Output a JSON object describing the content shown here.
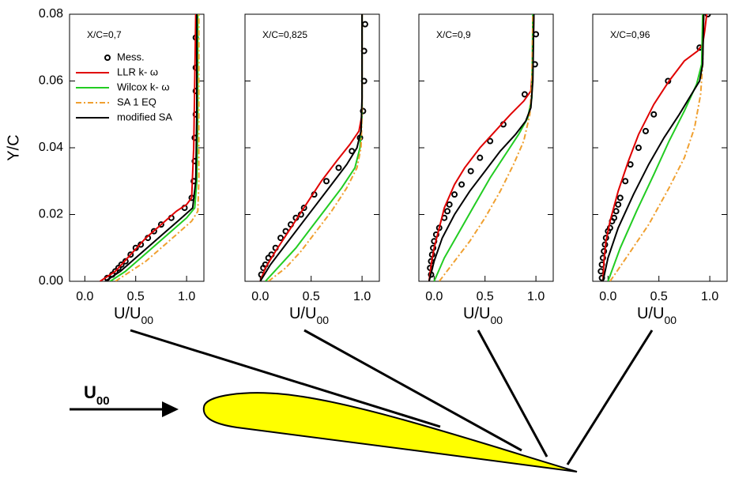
{
  "chart_data": [
    {
      "type": "line",
      "annotation": "X/C=0,7",
      "ylabel": "Y/C",
      "xlabel": {
        "main": "U/U",
        "sub": "00"
      },
      "legend": "upper left",
      "xlim": [
        -0.15,
        1.17
      ],
      "ylim": [
        0,
        0.08
      ],
      "xticks": [
        {
          "value": 0,
          "label": "0.0"
        },
        {
          "value": 0.5,
          "label": "0.5"
        },
        {
          "value": 1,
          "label": "1.0"
        }
      ],
      "yticks": [
        {
          "value": 0,
          "label": "0.00"
        },
        {
          "value": 0.02,
          "label": "0.02"
        },
        {
          "value": 0.04,
          "label": "0.04"
        },
        {
          "value": 0.06,
          "label": "0.06"
        },
        {
          "value": 0.08,
          "label": "0.08"
        }
      ],
      "series": [
        {
          "name": "Mess.",
          "color": "#000000",
          "style": "marker",
          "x": [
            0.22,
            0.27,
            0.3,
            0.33,
            0.36,
            0.4,
            0.45,
            0.5,
            0.55,
            0.62,
            0.68,
            0.75,
            0.85,
            0.98,
            1.05,
            1.07,
            1.08,
            1.08,
            1.09,
            1.09,
            1.09,
            1.09
          ],
          "y": [
            0.001,
            0.002,
            0.003,
            0.004,
            0.005,
            0.006,
            0.008,
            0.01,
            0.011,
            0.013,
            0.015,
            0.017,
            0.019,
            0.022,
            0.025,
            0.03,
            0.036,
            0.043,
            0.05,
            0.057,
            0.064,
            0.073
          ]
        },
        {
          "name": "LLR k- ω",
          "color": "#e00000",
          "style": "solid",
          "x": [
            0.15,
            0.3,
            0.45,
            0.6,
            0.75,
            0.9,
            1.0,
            1.05,
            1.07,
            1.08,
            1.09
          ],
          "y": [
            0,
            0.003,
            0.008,
            0.013,
            0.017,
            0.021,
            0.023,
            0.025,
            0.04,
            0.06,
            0.08
          ]
        },
        {
          "name": "Wilcox k- ω",
          "color": "#22cc22",
          "style": "solid",
          "x": [
            0.25,
            0.4,
            0.55,
            0.7,
            0.85,
            1.0,
            1.08,
            1.1,
            1.11,
            1.11
          ],
          "y": [
            0,
            0.003,
            0.007,
            0.011,
            0.015,
            0.019,
            0.022,
            0.03,
            0.05,
            0.08
          ]
        },
        {
          "name": "SA 1 EQ",
          "color": "#f0a030",
          "style": "dashdot",
          "x": [
            0.3,
            0.45,
            0.6,
            0.75,
            0.9,
            1.05,
            1.11,
            1.12,
            1.12,
            1.12
          ],
          "y": [
            0,
            0.003,
            0.006,
            0.01,
            0.014,
            0.018,
            0.021,
            0.03,
            0.05,
            0.08
          ]
        },
        {
          "name": "modified SA",
          "color": "#000000",
          "style": "solid",
          "x": [
            0.2,
            0.35,
            0.5,
            0.65,
            0.8,
            0.95,
            1.06,
            1.09,
            1.1,
            1.1
          ],
          "y": [
            0,
            0.003,
            0.007,
            0.011,
            0.015,
            0.019,
            0.022,
            0.03,
            0.05,
            0.08
          ]
        }
      ]
    },
    {
      "type": "line",
      "annotation": "X/C=0,825",
      "xlabel": {
        "main": "U/U",
        "sub": "00"
      },
      "xlim": [
        -0.15,
        1.17
      ],
      "ylim": [
        0,
        0.08
      ],
      "xticks": [
        {
          "value": 0,
          "label": "0.0"
        },
        {
          "value": 0.5,
          "label": "0.5"
        },
        {
          "value": 1,
          "label": "1.0"
        }
      ],
      "yticks": [
        0,
        0.02,
        0.04,
        0.06,
        0.08
      ],
      "series": [
        {
          "color": "#000000",
          "style": "marker",
          "x": [
            0.01,
            0.03,
            0.05,
            0.08,
            0.11,
            0.15,
            0.2,
            0.25,
            0.3,
            0.35,
            0.4,
            0.43,
            0.53,
            0.65,
            0.77,
            0.9,
            0.98,
            1.01,
            1.02,
            1.02,
            1.03
          ],
          "y": [
            0.002,
            0.004,
            0.005,
            0.007,
            0.008,
            0.01,
            0.013,
            0.015,
            0.017,
            0.019,
            0.02,
            0.022,
            0.026,
            0.03,
            0.034,
            0.039,
            0.043,
            0.051,
            0.06,
            0.069,
            0.077
          ]
        },
        {
          "color": "#e00000",
          "style": "solid",
          "x": [
            0,
            0.05,
            0.15,
            0.3,
            0.45,
            0.6,
            0.75,
            0.88,
            0.97,
            1.0,
            1.0
          ],
          "y": [
            0,
            0.004,
            0.009,
            0.016,
            0.023,
            0.03,
            0.036,
            0.041,
            0.045,
            0.05,
            0.08
          ]
        },
        {
          "color": "#22cc22",
          "style": "solid",
          "x": [
            0.05,
            0.2,
            0.35,
            0.5,
            0.65,
            0.8,
            0.93,
            0.98,
            1.0,
            1.0
          ],
          "y": [
            0,
            0.005,
            0.01,
            0.016,
            0.022,
            0.028,
            0.034,
            0.04,
            0.05,
            0.08
          ]
        },
        {
          "color": "#f0a030",
          "style": "dashdot",
          "x": [
            0.08,
            0.25,
            0.4,
            0.55,
            0.7,
            0.85,
            0.95,
            0.99,
            1.0,
            1.0
          ],
          "y": [
            0,
            0.004,
            0.009,
            0.015,
            0.021,
            0.028,
            0.034,
            0.04,
            0.05,
            0.08
          ]
        },
        {
          "color": "#000000",
          "style": "solid",
          "x": [
            0,
            0.1,
            0.25,
            0.4,
            0.55,
            0.7,
            0.85,
            0.95,
            0.99,
            1.0,
            1.0
          ],
          "y": [
            0,
            0.005,
            0.011,
            0.017,
            0.023,
            0.029,
            0.035,
            0.04,
            0.045,
            0.055,
            0.08
          ]
        }
      ]
    },
    {
      "type": "line",
      "annotation": "X/C=0,9",
      "xlabel": {
        "main": "U/U",
        "sub": "00"
      },
      "xlim": [
        -0.15,
        1.17
      ],
      "ylim": [
        0,
        0.08
      ],
      "xticks": [
        {
          "value": 0,
          "label": "0.0"
        },
        {
          "value": 0.5,
          "label": "0.5"
        },
        {
          "value": 1,
          "label": "1.0"
        }
      ],
      "yticks": [
        0,
        0.02,
        0.04,
        0.06,
        0.08
      ],
      "series": [
        {
          "color": "#000000",
          "style": "marker",
          "x": [
            -0.03,
            -0.04,
            -0.03,
            -0.02,
            -0.01,
            0,
            0.02,
            0.05,
            0.1,
            0.13,
            0.15,
            0.2,
            0.27,
            0.36,
            0.45,
            0.55,
            0.68,
            0.89,
            0.99,
            1.0
          ],
          "y": [
            0.002,
            0.004,
            0.006,
            0.008,
            0.01,
            0.012,
            0.014,
            0.016,
            0.019,
            0.021,
            0.023,
            0.026,
            0.029,
            0.033,
            0.037,
            0.042,
            0.047,
            0.056,
            0.065,
            0.074
          ]
        },
        {
          "color": "#e00000",
          "style": "solid",
          "x": [
            -0.05,
            -0.03,
            0,
            0.05,
            0.1,
            0.2,
            0.3,
            0.45,
            0.6,
            0.75,
            0.88,
            0.95,
            0.97,
            0.98
          ],
          "y": [
            0,
            0.005,
            0.01,
            0.016,
            0.022,
            0.029,
            0.034,
            0.04,
            0.045,
            0.05,
            0.054,
            0.057,
            0.065,
            0.08
          ]
        },
        {
          "color": "#22cc22",
          "style": "solid",
          "x": [
            0,
            0.1,
            0.25,
            0.4,
            0.55,
            0.7,
            0.83,
            0.92,
            0.96,
            0.97
          ],
          "y": [
            0,
            0.007,
            0.015,
            0.023,
            0.031,
            0.038,
            0.044,
            0.049,
            0.055,
            0.08
          ]
        },
        {
          "color": "#f0a030",
          "style": "dashdot",
          "x": [
            0.05,
            0.2,
            0.35,
            0.5,
            0.65,
            0.78,
            0.88,
            0.94,
            0.96,
            0.97
          ],
          "y": [
            0,
            0.006,
            0.012,
            0.019,
            0.027,
            0.035,
            0.042,
            0.05,
            0.06,
            0.08
          ]
        },
        {
          "color": "#000000",
          "style": "solid",
          "x": [
            -0.05,
            0,
            0.08,
            0.2,
            0.35,
            0.5,
            0.65,
            0.8,
            0.9,
            0.95,
            0.97,
            0.98
          ],
          "y": [
            0,
            0.006,
            0.013,
            0.02,
            0.027,
            0.033,
            0.039,
            0.044,
            0.048,
            0.052,
            0.06,
            0.08
          ]
        }
      ]
    },
    {
      "type": "line",
      "annotation": "X/C=0,96",
      "xlabel": {
        "main": "U/U",
        "sub": "00"
      },
      "xlim": [
        -0.15,
        1.17
      ],
      "ylim": [
        0,
        0.08
      ],
      "xticks": [
        {
          "value": 0,
          "label": "0.0"
        },
        {
          "value": 0.5,
          "label": "0.5"
        },
        {
          "value": 1,
          "label": "1.0"
        }
      ],
      "yticks": [
        0,
        0.02,
        0.04,
        0.06,
        0.08
      ],
      "series": [
        {
          "color": "#000000",
          "style": "marker",
          "x": [
            -0.06,
            -0.07,
            -0.06,
            -0.05,
            -0.04,
            -0.03,
            -0.02,
            0,
            0.02,
            0.04,
            0.06,
            0.08,
            0.1,
            0.12,
            0.17,
            0.22,
            0.3,
            0.37,
            0.45,
            0.59,
            0.9,
            0.98
          ],
          "y": [
            0.001,
            0.003,
            0.005,
            0.007,
            0.009,
            0.011,
            0.013,
            0.015,
            0.016,
            0.018,
            0.019,
            0.021,
            0.023,
            0.025,
            0.03,
            0.035,
            0.04,
            0.045,
            0.05,
            0.06,
            0.07,
            0.08
          ]
        },
        {
          "color": "#e00000",
          "style": "solid",
          "x": [
            -0.05,
            -0.04,
            -0.02,
            0.02,
            0.1,
            0.2,
            0.3,
            0.45,
            0.6,
            0.75,
            0.88,
            0.93,
            0.95,
            0.97
          ],
          "y": [
            0,
            0.006,
            0.012,
            0.018,
            0.027,
            0.036,
            0.044,
            0.053,
            0.06,
            0.066,
            0.069,
            0.071,
            0.075,
            0.08
          ]
        },
        {
          "color": "#22cc22",
          "style": "solid",
          "x": [
            0,
            0.12,
            0.28,
            0.45,
            0.6,
            0.75,
            0.87,
            0.92,
            0.93
          ],
          "y": [
            0,
            0.01,
            0.021,
            0.032,
            0.042,
            0.051,
            0.059,
            0.065,
            0.08
          ]
        },
        {
          "color": "#f0a030",
          "style": "dashdot",
          "x": [
            0.02,
            0.2,
            0.4,
            0.6,
            0.75,
            0.85,
            0.91,
            0.93,
            0.94
          ],
          "y": [
            0,
            0.008,
            0.017,
            0.028,
            0.037,
            0.046,
            0.056,
            0.065,
            0.08
          ]
        },
        {
          "color": "#000000",
          "style": "solid",
          "x": [
            -0.05,
            0,
            0.1,
            0.25,
            0.4,
            0.55,
            0.7,
            0.82,
            0.9,
            0.93,
            0.94
          ],
          "y": [
            0,
            0.007,
            0.016,
            0.026,
            0.035,
            0.043,
            0.05,
            0.056,
            0.06,
            0.065,
            0.08
          ]
        }
      ]
    }
  ],
  "diagram": {
    "freestream_label": {
      "main": "U",
      "sub": "00"
    }
  }
}
